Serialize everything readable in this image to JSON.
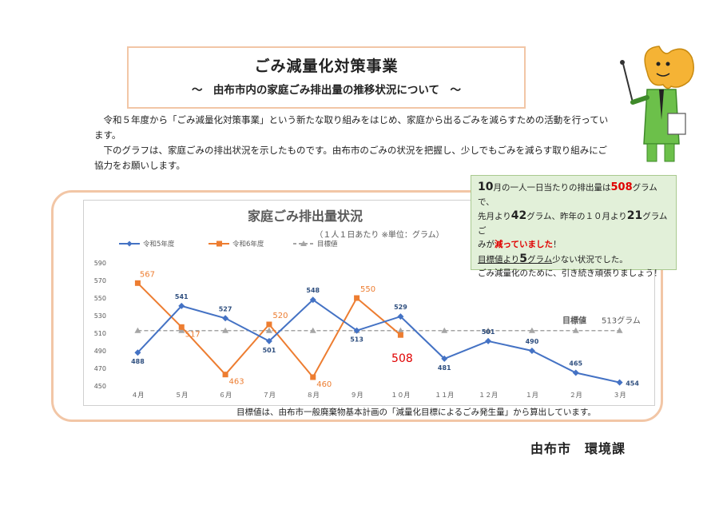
{
  "header": {
    "title": "ごみ減量化対策事業",
    "subtitle": "～　由布市内の家庭ごみ排出量の推移状況について　～"
  },
  "intro": {
    "p1": "令和５年度から「ごみ減量化対策事業」という新たな取り組みをはじめ、家庭から出るごみを減らすための活動を行っています。",
    "p2": "下のグラフは、家庭ごみの排出状況を示したものです。由布市のごみの状況を把握し、少しでもごみを減らす取り組みにご協力をお願いします。"
  },
  "note": {
    "l1_a": "10",
    "l1_b": "月の一人一日当たりの排出量は",
    "l1_c": "508",
    "l1_d": "グラムで、",
    "l2_a": "先月より",
    "l2_b": "42",
    "l2_c": "グラム、昨年の１０月より",
    "l2_d": "21",
    "l2_e": "グラムご",
    "l3_a": "みが",
    "l3_b": "減っていました",
    "l3_c": "！",
    "l4_a": "目標値より",
    "l4_b": "5",
    "l4_c": "グラム",
    "l4_d": "少ない状況でした。",
    "l5": "ごみ減量化のために、引き続き頑張りましょう！"
  },
  "footnote": "目標値は、由布市一般廃棄物基本計画の「減量化目標によるごみ発生量」から算出しています。",
  "department": "由布市　環境課",
  "chart_data": {
    "type": "line",
    "title": "家庭ごみ排出量状況",
    "subtitle": "（１人１日あたり ※単位：グラム）",
    "categories": [
      "４月",
      "５月",
      "６月",
      "７月",
      "８月",
      "９月",
      "１０月",
      "１１月",
      "１２月",
      "１月",
      "２月",
      "３月"
    ],
    "ylim": [
      450,
      590
    ],
    "yticks": [
      590,
      570,
      550,
      530,
      510,
      490,
      470,
      450
    ],
    "series": [
      {
        "name": "令和5年度",
        "color": "#4472c4",
        "values": [
          488,
          541,
          527,
          501,
          548,
          513,
          529,
          481,
          501,
          490,
          465,
          454
        ]
      },
      {
        "name": "令和6年度",
        "color": "#ed7d31",
        "values": [
          567,
          517,
          463,
          520,
          460,
          550,
          508,
          null,
          null,
          null,
          null,
          null
        ]
      },
      {
        "name": "目標値",
        "color": "#a5a5a5",
        "values": [
          513,
          513,
          513,
          513,
          513,
          513,
          513,
          513,
          513,
          513,
          513,
          513
        ]
      }
    ],
    "target_label": "目標値",
    "target_value_label": "513グラム",
    "highlight_label": "508",
    "legend": "top-left"
  }
}
